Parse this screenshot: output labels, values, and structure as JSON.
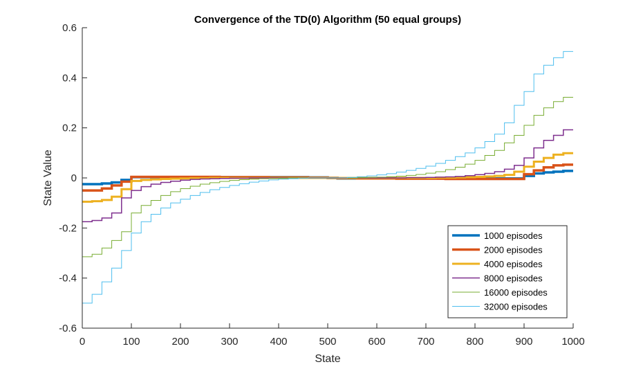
{
  "chart_data": {
    "type": "line",
    "title": "Convergence of the TD(0) Algorithm (50 equal groups)",
    "xlabel": "State",
    "ylabel": "State Value",
    "xlim": [
      0,
      1000
    ],
    "ylim": [
      -0.6,
      0.6
    ],
    "xticks": [
      "0",
      "100",
      "200",
      "300",
      "400",
      "500",
      "600",
      "700",
      "800",
      "900",
      "1000"
    ],
    "yticks": [
      "-0.6",
      "-0.4",
      "-0.2",
      "0",
      "0.2",
      "0.4",
      "0.6"
    ],
    "grid": false,
    "legend_position": "bottom-right",
    "step_width": 20,
    "series": [
      {
        "name": "1000 episodes",
        "color": "#0072BD",
        "width": 3.5,
        "values": [
          -0.025,
          -0.025,
          -0.022,
          -0.018,
          -0.008,
          0.003,
          0.003,
          0.003,
          0.003,
          0.003,
          0.003,
          0.003,
          0.003,
          0.003,
          0.003,
          0.003,
          0.003,
          0.003,
          0.003,
          0.003,
          0.003,
          0.003,
          0.003,
          0.002,
          0.002,
          0.0,
          -0.002,
          -0.002,
          -0.002,
          -0.002,
          -0.002,
          -0.002,
          -0.002,
          -0.002,
          -0.002,
          -0.002,
          -0.002,
          -0.002,
          -0.002,
          -0.002,
          -0.002,
          -0.002,
          -0.002,
          -0.002,
          -0.002,
          0.008,
          0.018,
          0.022,
          0.025,
          0.028
        ]
      },
      {
        "name": "2000 episodes",
        "color": "#D95319",
        "width": 3.5,
        "values": [
          -0.05,
          -0.05,
          -0.042,
          -0.03,
          -0.015,
          0.004,
          0.004,
          0.004,
          0.004,
          0.004,
          0.004,
          0.004,
          0.004,
          0.004,
          0.003,
          0.003,
          0.003,
          0.003,
          0.003,
          0.002,
          0.002,
          0.002,
          0.002,
          0.001,
          0.001,
          0.0,
          -0.001,
          -0.001,
          -0.002,
          -0.002,
          -0.002,
          -0.002,
          -0.003,
          -0.003,
          -0.003,
          -0.003,
          -0.003,
          -0.004,
          -0.004,
          -0.004,
          -0.004,
          -0.004,
          -0.004,
          -0.004,
          -0.004,
          0.015,
          0.03,
          0.042,
          0.05,
          0.053
        ]
      },
      {
        "name": "4000 episodes",
        "color": "#EDB120",
        "width": 3,
        "values": [
          -0.095,
          -0.093,
          -0.088,
          -0.075,
          -0.045,
          -0.012,
          -0.008,
          -0.006,
          -0.004,
          -0.003,
          -0.002,
          -0.001,
          -0.001,
          0.0,
          0.0,
          0.0,
          0.0,
          0.0,
          0.0,
          0.0,
          0.0,
          0.0,
          0.0,
          0.0,
          0.0,
          0.0,
          0.0,
          0.0,
          0.0,
          0.0,
          0.0,
          0.0,
          0.0,
          0.0,
          0.0,
          0.0,
          0.001,
          0.001,
          0.002,
          0.003,
          0.004,
          0.006,
          0.008,
          0.012,
          0.025,
          0.045,
          0.065,
          0.08,
          0.093,
          0.099
        ]
      },
      {
        "name": "8000 episodes",
        "color": "#7E2F8E",
        "width": 1.5,
        "values": [
          -0.175,
          -0.17,
          -0.16,
          -0.14,
          -0.08,
          -0.05,
          -0.035,
          -0.025,
          -0.018,
          -0.013,
          -0.009,
          -0.006,
          -0.004,
          -0.003,
          -0.002,
          -0.001,
          -0.001,
          0.0,
          0.0,
          0.0,
          0.0,
          0.0,
          0.0,
          0.0,
          0.0,
          0.0,
          0.0,
          0.0,
          0.0,
          0.0,
          0.0,
          0.0,
          0.0,
          0.001,
          0.001,
          0.002,
          0.003,
          0.004,
          0.006,
          0.009,
          0.013,
          0.018,
          0.025,
          0.035,
          0.05,
          0.08,
          0.12,
          0.15,
          0.17,
          0.192
        ]
      },
      {
        "name": "16000 episodes",
        "color": "#77AC30",
        "width": 1,
        "values": [
          -0.315,
          -0.305,
          -0.28,
          -0.25,
          -0.215,
          -0.14,
          -0.11,
          -0.09,
          -0.07,
          -0.055,
          -0.043,
          -0.033,
          -0.025,
          -0.019,
          -0.014,
          -0.01,
          -0.007,
          -0.005,
          -0.003,
          -0.002,
          -0.001,
          0.0,
          0.0,
          0.0,
          0.0,
          0.0,
          0.0,
          0.0,
          0.001,
          0.002,
          0.003,
          0.005,
          0.007,
          0.01,
          0.014,
          0.019,
          0.025,
          0.033,
          0.043,
          0.055,
          0.07,
          0.09,
          0.11,
          0.14,
          0.17,
          0.21,
          0.25,
          0.28,
          0.305,
          0.322
        ]
      },
      {
        "name": "32000 episodes",
        "color": "#4DBEEE",
        "width": 1,
        "values": [
          -0.5,
          -0.465,
          -0.415,
          -0.36,
          -0.29,
          -0.22,
          -0.175,
          -0.145,
          -0.12,
          -0.1,
          -0.085,
          -0.07,
          -0.058,
          -0.047,
          -0.038,
          -0.03,
          -0.023,
          -0.017,
          -0.012,
          -0.008,
          -0.005,
          -0.003,
          -0.001,
          0.0,
          0.0,
          0.0,
          0.0,
          0.002,
          0.005,
          0.008,
          0.012,
          0.017,
          0.023,
          0.03,
          0.038,
          0.047,
          0.058,
          0.07,
          0.085,
          0.1,
          0.12,
          0.145,
          0.175,
          0.22,
          0.29,
          0.345,
          0.415,
          0.45,
          0.48,
          0.505
        ]
      }
    ]
  }
}
